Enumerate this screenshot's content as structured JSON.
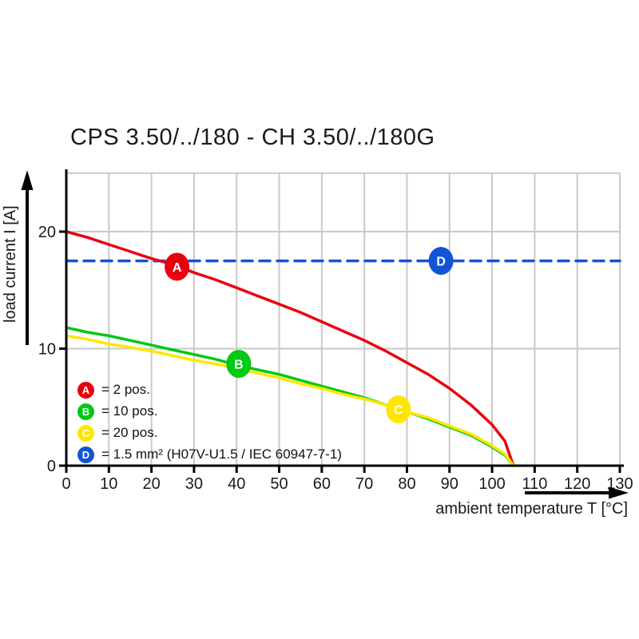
{
  "title": "CPS 3.50/../180 - CH 3.50/../180G",
  "axes": {
    "x_label": "ambient temperature T [°C]",
    "y_label": "load current I [A]",
    "x_ticks": [
      0,
      10,
      20,
      30,
      40,
      50,
      60,
      70,
      80,
      90,
      100,
      110,
      120,
      130
    ],
    "y_ticks": [
      0,
      10,
      20
    ]
  },
  "colors": {
    "red": "#e8000f",
    "green": "#00c814",
    "yellow": "#ffe600",
    "blue": "#1254d6",
    "grid": "#c9c9c9",
    "axis": "#000000"
  },
  "legend": {
    "items": [
      {
        "key": "A",
        "color": "#e8000f",
        "label": "= 2 pos."
      },
      {
        "key": "B",
        "color": "#00c814",
        "label": "= 10 pos."
      },
      {
        "key": "C",
        "color": "#ffe600",
        "label": "= 20 pos."
      },
      {
        "key": "D",
        "color": "#1254d6",
        "label": "= 1.5 mm² (H07V-U1.5 / IEC 60947-7-1)"
      }
    ]
  },
  "chart_data": {
    "type": "line",
    "title": "CPS 3.50/../180 - CH 3.50/../180G",
    "xlabel": "ambient temperature T [°C]",
    "ylabel": "load current I [A]",
    "xlim": [
      0,
      130
    ],
    "ylim": [
      0,
      25
    ],
    "x_ticks": [
      0,
      10,
      20,
      30,
      40,
      50,
      60,
      70,
      80,
      90,
      100,
      110,
      120,
      130
    ],
    "y_ticks": [
      0,
      10,
      20
    ],
    "grid": true,
    "legend_position": "inside-bottom-left",
    "series": [
      {
        "name": "A = 2 pos.",
        "color": "#e8000f",
        "style": "solid",
        "points": [
          [
            0,
            20.0
          ],
          [
            5,
            19.5
          ],
          [
            10,
            18.9
          ],
          [
            15,
            18.3
          ],
          [
            20,
            17.7
          ],
          [
            25,
            17.2
          ],
          [
            30,
            16.5
          ],
          [
            35,
            15.9
          ],
          [
            40,
            15.2
          ],
          [
            45,
            14.5
          ],
          [
            50,
            13.8
          ],
          [
            55,
            13.1
          ],
          [
            60,
            12.3
          ],
          [
            65,
            11.5
          ],
          [
            70,
            10.7
          ],
          [
            75,
            9.8
          ],
          [
            80,
            8.8
          ],
          [
            85,
            7.8
          ],
          [
            90,
            6.6
          ],
          [
            95,
            5.2
          ],
          [
            100,
            3.5
          ],
          [
            103,
            2.1
          ],
          [
            105,
            0
          ]
        ],
        "marker": {
          "label": "A",
          "x": 26,
          "y": 17.0
        }
      },
      {
        "name": "B = 10 pos.",
        "color": "#00c814",
        "style": "solid",
        "points": [
          [
            0,
            11.8
          ],
          [
            5,
            11.4
          ],
          [
            10,
            11.1
          ],
          [
            15,
            10.7
          ],
          [
            20,
            10.3
          ],
          [
            25,
            9.9
          ],
          [
            30,
            9.5
          ],
          [
            35,
            9.1
          ],
          [
            40,
            8.6
          ],
          [
            45,
            8.2
          ],
          [
            50,
            7.8
          ],
          [
            55,
            7.3
          ],
          [
            60,
            6.8
          ],
          [
            65,
            6.3
          ],
          [
            70,
            5.8
          ],
          [
            75,
            5.2
          ],
          [
            80,
            4.6
          ],
          [
            85,
            4.0
          ],
          [
            90,
            3.3
          ],
          [
            95,
            2.6
          ],
          [
            100,
            1.6
          ],
          [
            103,
            0.9
          ],
          [
            105,
            0
          ]
        ],
        "marker": {
          "label": "B",
          "x": 40.5,
          "y": 8.7
        }
      },
      {
        "name": "C = 20 pos.",
        "color": "#ffe600",
        "style": "solid",
        "points": [
          [
            0,
            11.1
          ],
          [
            5,
            10.8
          ],
          [
            10,
            10.4
          ],
          [
            15,
            10.1
          ],
          [
            20,
            9.8
          ],
          [
            25,
            9.4
          ],
          [
            30,
            9.0
          ],
          [
            35,
            8.7
          ],
          [
            40,
            8.3
          ],
          [
            45,
            7.9
          ],
          [
            50,
            7.5
          ],
          [
            55,
            7.0
          ],
          [
            60,
            6.6
          ],
          [
            65,
            6.1
          ],
          [
            70,
            5.7
          ],
          [
            75,
            5.2
          ],
          [
            80,
            4.6
          ],
          [
            85,
            4.1
          ],
          [
            90,
            3.4
          ],
          [
            95,
            2.7
          ],
          [
            100,
            1.7
          ],
          [
            103,
            1.0
          ],
          [
            105,
            0
          ]
        ],
        "marker": {
          "label": "C",
          "x": 78,
          "y": 4.8
        }
      },
      {
        "name": "D = 1.5 mm² (H07V-U1.5 / IEC 60947-7-1)",
        "color": "#1254d6",
        "style": "dashed",
        "points": [
          [
            0,
            17.5
          ],
          [
            130,
            17.5
          ]
        ],
        "marker": {
          "label": "D",
          "x": 88,
          "y": 17.5
        }
      }
    ]
  }
}
